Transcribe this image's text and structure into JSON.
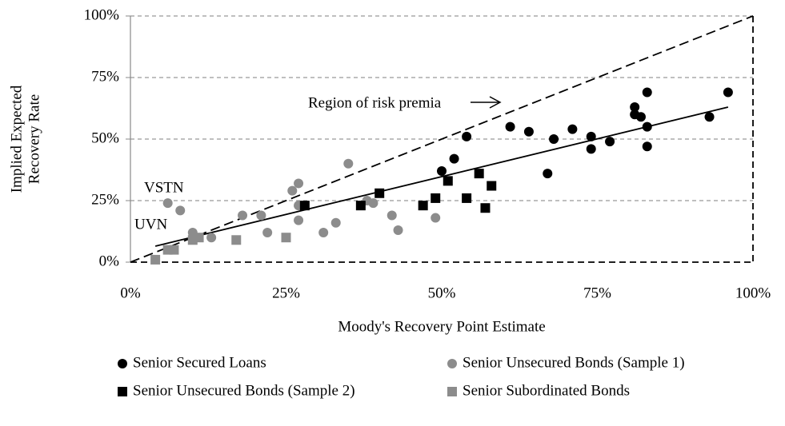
{
  "chart_data": {
    "type": "scatter",
    "xlabel": "Moody's Recovery Point Estimate",
    "ylabel": [
      "Implied Expected",
      "Recovery Rate"
    ],
    "xlim": [
      0,
      100
    ],
    "ylim": [
      0,
      100
    ],
    "xticks": [
      {
        "value": 0,
        "label": "0%"
      },
      {
        "value": 25,
        "label": "25%"
      },
      {
        "value": 50,
        "label": "50%"
      },
      {
        "value": 75,
        "label": "75%"
      },
      {
        "value": 100,
        "label": "100%"
      }
    ],
    "yticks": [
      {
        "value": 0,
        "label": "0%"
      },
      {
        "value": 25,
        "label": "25%"
      },
      {
        "value": 50,
        "label": "50%"
      },
      {
        "value": 75,
        "label": "75%"
      },
      {
        "value": 100,
        "label": "100%"
      }
    ],
    "grid": true,
    "series": [
      {
        "name": "Senior Secured Loans",
        "color": "#000000",
        "marker": "circle",
        "x": [
          50,
          52,
          54,
          61,
          64,
          67,
          68,
          71,
          74,
          74,
          77,
          81,
          81,
          82,
          83,
          83,
          83,
          93,
          96
        ],
        "values": [
          37,
          42,
          51,
          55,
          53,
          36,
          50,
          54,
          51,
          46,
          49,
          63,
          60,
          59,
          69,
          55,
          47,
          59,
          69
        ]
      },
      {
        "name": "Senior Unsecured Bonds (Sample 1)",
        "color": "#8c8c8c",
        "marker": "circle",
        "x": [
          6,
          8,
          10,
          10,
          13,
          18,
          21,
          22,
          26,
          27,
          27,
          27,
          31,
          33,
          35,
          38,
          39,
          42,
          43,
          49
        ],
        "values": [
          24,
          21,
          12,
          10,
          10,
          19,
          19,
          12,
          29,
          32,
          23,
          17,
          12,
          16,
          40,
          25,
          24,
          19,
          13,
          18
        ]
      },
      {
        "name": "Senior Unsecured Bonds (Sample 2)",
        "color": "#000000",
        "marker": "square",
        "x": [
          28,
          37,
          40,
          47,
          49,
          51,
          54,
          56,
          57,
          58
        ],
        "values": [
          23,
          23,
          28,
          23,
          26,
          33,
          26,
          36,
          22,
          31
        ]
      },
      {
        "name": "Senior Subordinated Bonds",
        "color": "#8c8c8c",
        "marker": "square",
        "x": [
          4,
          6,
          7,
          10,
          11,
          17,
          25
        ],
        "values": [
          1,
          5,
          5,
          9,
          10,
          9,
          10
        ]
      }
    ],
    "diagonal": {
      "x": [
        0,
        100
      ],
      "values": [
        0,
        100
      ]
    },
    "fit_line": {
      "x": [
        4,
        96
      ],
      "values": [
        6.5,
        63
      ]
    },
    "annotations": [
      "Region of risk premia",
      "VSTN",
      "UVN"
    ]
  }
}
